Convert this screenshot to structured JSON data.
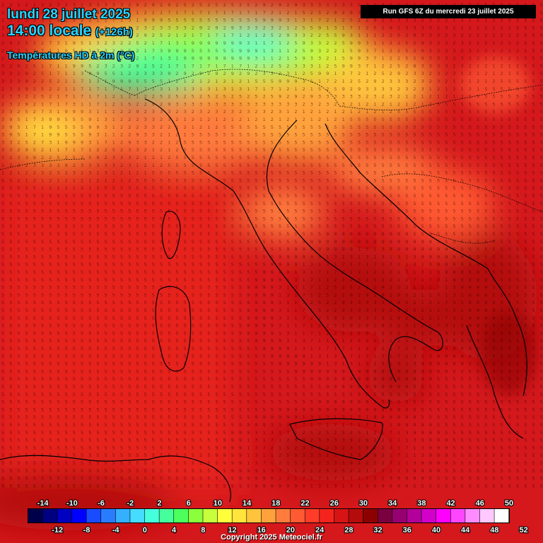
{
  "header": {
    "date": "lundi 28 juillet 2025",
    "time": "14:00 locale",
    "lead": "(+126h)",
    "product": "Températures HD à 2m (°C)",
    "run": "Run GFS 6Z du mercredi 23 juillet 2025"
  },
  "legend": {
    "top_labels": [
      "-14",
      "-10",
      "-6",
      "-2",
      "2",
      "6",
      "10",
      "14",
      "18",
      "22",
      "26",
      "30",
      "34",
      "38",
      "42",
      "46",
      "50"
    ],
    "bottom_labels": [
      "-12",
      "-8",
      "-4",
      "0",
      "4",
      "8",
      "12",
      "16",
      "20",
      "24",
      "28",
      "32",
      "36",
      "40",
      "44",
      "48",
      "52"
    ],
    "colors": [
      "#00004a",
      "#000080",
      "#0000c0",
      "#0000ff",
      "#1a4cff",
      "#2a7cff",
      "#35b0ff",
      "#45dcff",
      "#46ffdd",
      "#46ff9a",
      "#4cff5c",
      "#8cff3c",
      "#c8ff3c",
      "#ffff3c",
      "#ffe43c",
      "#ffc43c",
      "#ffa23c",
      "#ff7c3c",
      "#ff5a32",
      "#ff3c28",
      "#f5231e",
      "#d71414",
      "#b40c0c",
      "#8c0000",
      "#7a0040",
      "#960070",
      "#b4009a",
      "#d200c8",
      "#ff00ff",
      "#ff46ff",
      "#ff8cff",
      "#ffc8ff",
      "#ffffff"
    ]
  },
  "map_region": "Italie",
  "grid_values": [
    "5",
    "9",
    "13",
    "17",
    "21",
    "25",
    "29",
    "33",
    "32",
    "12"
  ],
  "copyright": "Copyright 2025 Meteociel.fr"
}
